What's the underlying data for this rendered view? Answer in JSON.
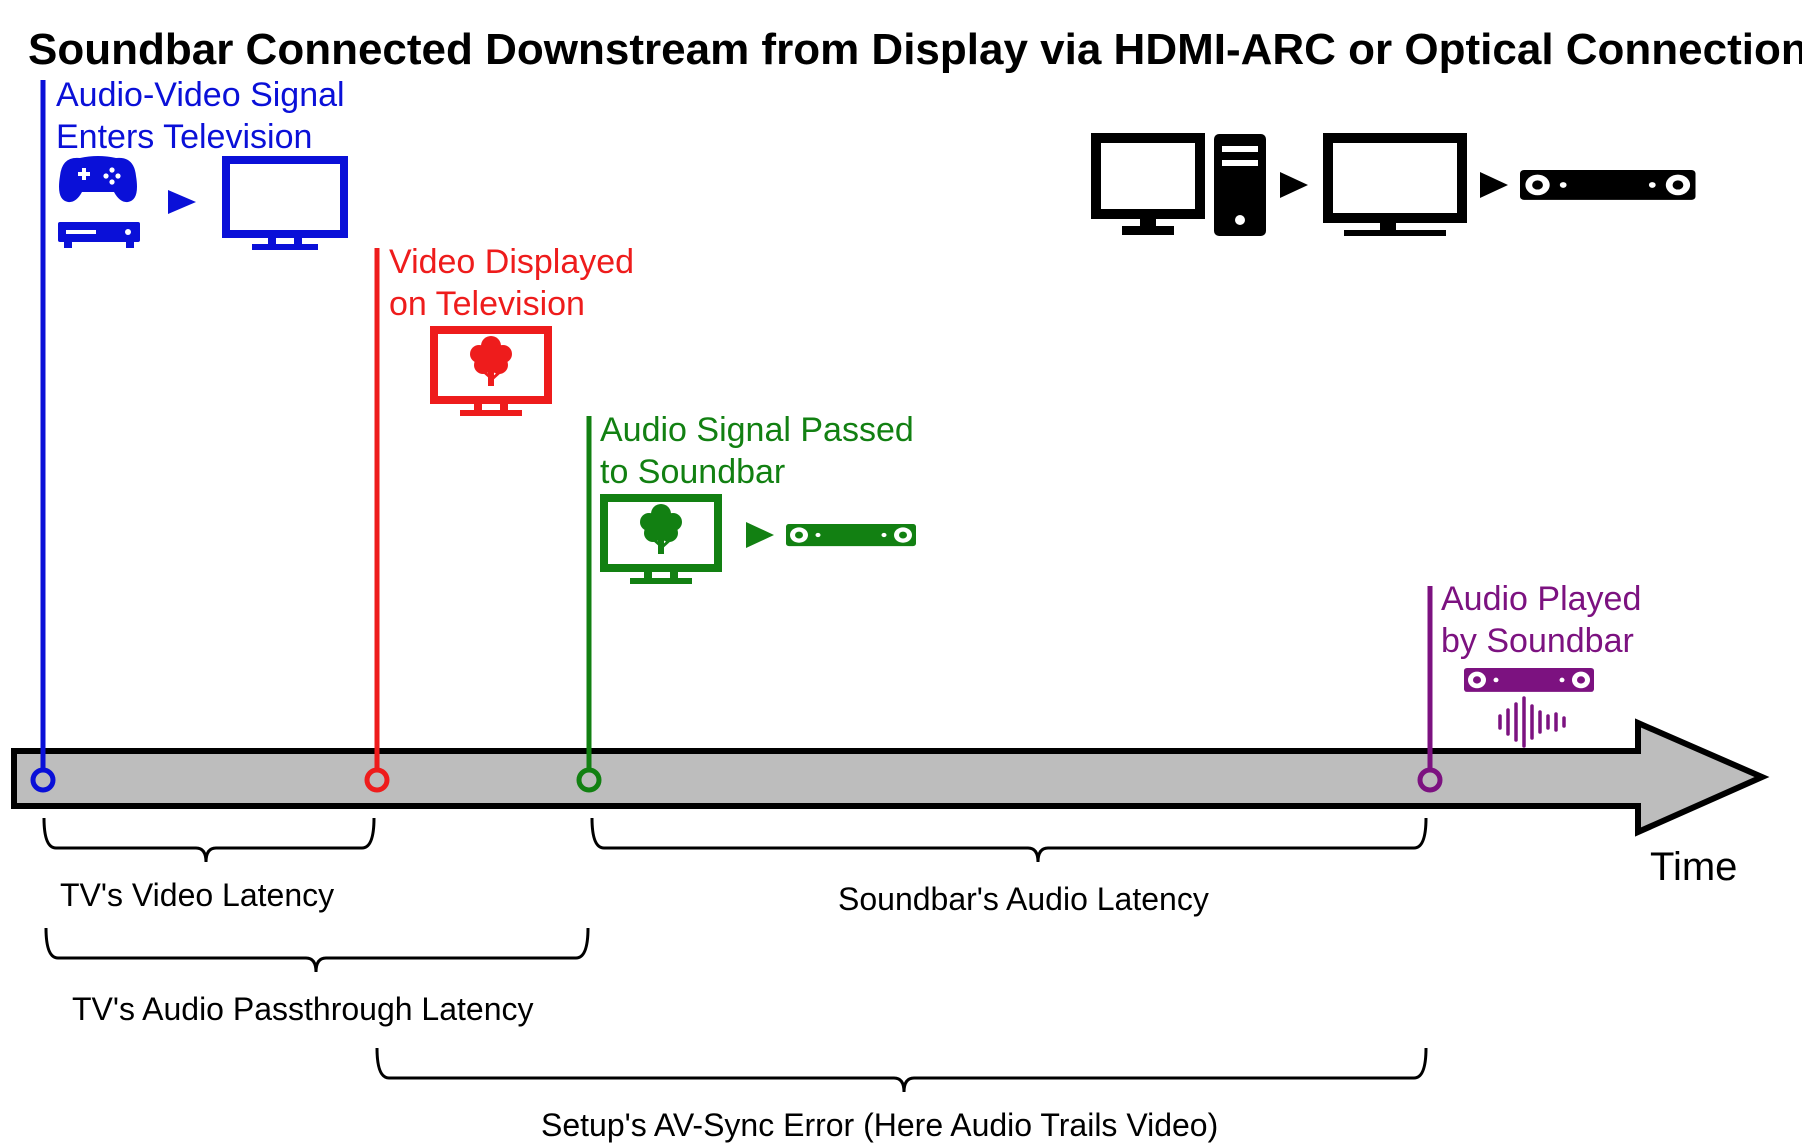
{
  "title": "Soundbar Connected Downstream from Display via HDMI-ARC or Optical Connection",
  "axis_label": "Time",
  "colors": {
    "blue": "#0a10d8",
    "red": "#ee1c1c",
    "green": "#128012",
    "purple": "#7c1280",
    "timeline_fill": "#bdbdbd",
    "black": "#000000"
  },
  "events": [
    {
      "id": "signal-enters",
      "color": "blue",
      "line1": "Audio-Video Signal",
      "line2": "Enters Television",
      "icons": [
        "gamepad-icon",
        "settop-box-icon",
        "play-arrow-icon",
        "tv-icon"
      ]
    },
    {
      "id": "video-displayed",
      "color": "red",
      "line1": "Video Displayed",
      "line2": "on Television",
      "icons": [
        "tv-tree-icon"
      ]
    },
    {
      "id": "audio-passed",
      "color": "green",
      "line1": "Audio Signal Passed",
      "line2": "to Soundbar",
      "icons": [
        "tv-tree-icon",
        "play-arrow-icon",
        "soundbar-icon"
      ]
    },
    {
      "id": "audio-played",
      "color": "purple",
      "line1": "Audio Played",
      "line2": "by Soundbar",
      "icons": [
        "soundbar-icon",
        "sound-wave-icon"
      ]
    }
  ],
  "legend_icons": [
    "monitor-icon",
    "pc-tower-icon",
    "play-arrow-icon",
    "monitor-icon",
    "play-arrow-icon",
    "soundbar-icon"
  ],
  "brackets": [
    {
      "id": "tv-video-latency",
      "label": "TV's Video Latency"
    },
    {
      "id": "soundbar-audio-latency",
      "label": "Soundbar's Audio Latency"
    },
    {
      "id": "tv-audio-passthrough-latency",
      "label": "TV's Audio Passthrough Latency"
    },
    {
      "id": "av-sync-error",
      "label": "Setup's AV-Sync Error (Here Audio Trails Video)"
    }
  ]
}
